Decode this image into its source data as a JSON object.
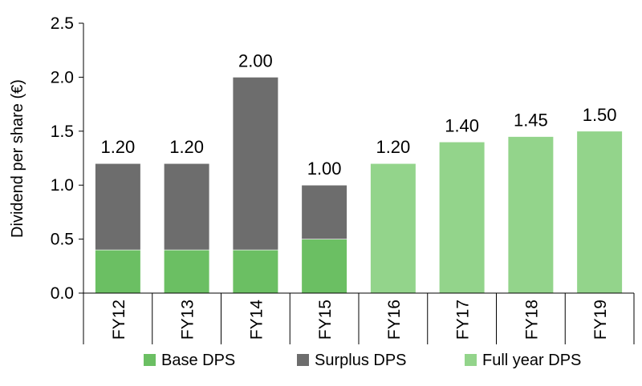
{
  "chart_data": {
    "type": "bar",
    "stacked": true,
    "categories": [
      "FY12",
      "FY13",
      "FY14",
      "FY15",
      "FY16",
      "FY17",
      "FY18",
      "FY19"
    ],
    "series": [
      {
        "name": "Base DPS",
        "values": [
          0.4,
          0.4,
          0.4,
          0.5,
          null,
          null,
          null,
          null
        ],
        "color": "#6bbf63"
      },
      {
        "name": "Surplus DPS",
        "values": [
          0.8,
          0.8,
          1.6,
          0.5,
          null,
          null,
          null,
          null
        ],
        "color": "#6d6d6d"
      },
      {
        "name": "Full year DPS",
        "values": [
          null,
          null,
          null,
          null,
          1.2,
          1.4,
          1.45,
          1.5
        ],
        "color": "#93d48b"
      }
    ],
    "totals": [
      "1.20",
      "1.20",
      "2.00",
      "1.00",
      "1.20",
      "1.40",
      "1.45",
      "1.50"
    ],
    "yticks": [
      "0.0",
      "0.5",
      "1.0",
      "1.5",
      "2.0",
      "2.5"
    ],
    "ylim": [
      0,
      2.5
    ],
    "ylabel": "Dividend per share (€)",
    "xlabel": "",
    "legend_position": "bottom",
    "grid": false
  }
}
